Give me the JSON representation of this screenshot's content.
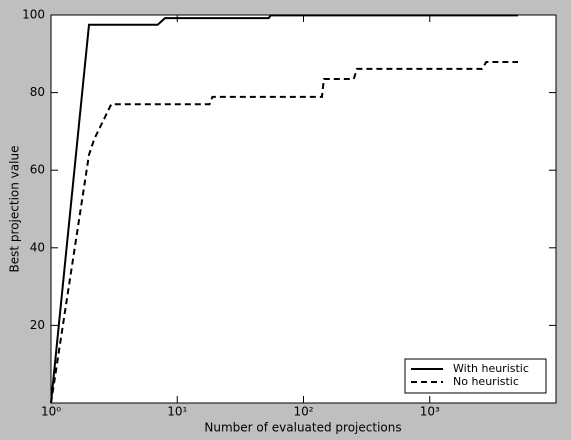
{
  "chart_data": {
    "type": "line",
    "xlabel": "Number of evaluated projections",
    "ylabel": "Best projection value",
    "xscale": "log",
    "xlim": [
      1,
      10000
    ],
    "xticks": [
      {
        "value": 1,
        "label": "10⁰"
      },
      {
        "value": 10,
        "label": "10¹"
      },
      {
        "value": 100,
        "label": "10²"
      },
      {
        "value": 1000,
        "label": "10³"
      }
    ],
    "ylim": [
      0,
      100
    ],
    "yticks": [
      20,
      40,
      60,
      80,
      100
    ],
    "legend": "lower right",
    "series": [
      {
        "name": "With heuristic",
        "color": "#000000",
        "dash": "solid",
        "x": [
          1,
          2,
          7,
          8,
          53,
          55,
          5000
        ],
        "values": [
          0,
          97.5,
          97.5,
          99.2,
          99.2,
          99.9,
          99.9
        ]
      },
      {
        "name": "No heuristic",
        "color": "#000000",
        "dash": "dashed",
        "x": [
          1,
          2,
          2.2,
          3,
          18,
          19,
          140,
          145,
          250,
          265,
          2600,
          2800,
          5000
        ],
        "values": [
          0,
          64,
          68,
          77,
          77,
          78.9,
          78.9,
          83.5,
          83.5,
          86.1,
          86.1,
          87.9,
          87.9
        ]
      }
    ]
  }
}
